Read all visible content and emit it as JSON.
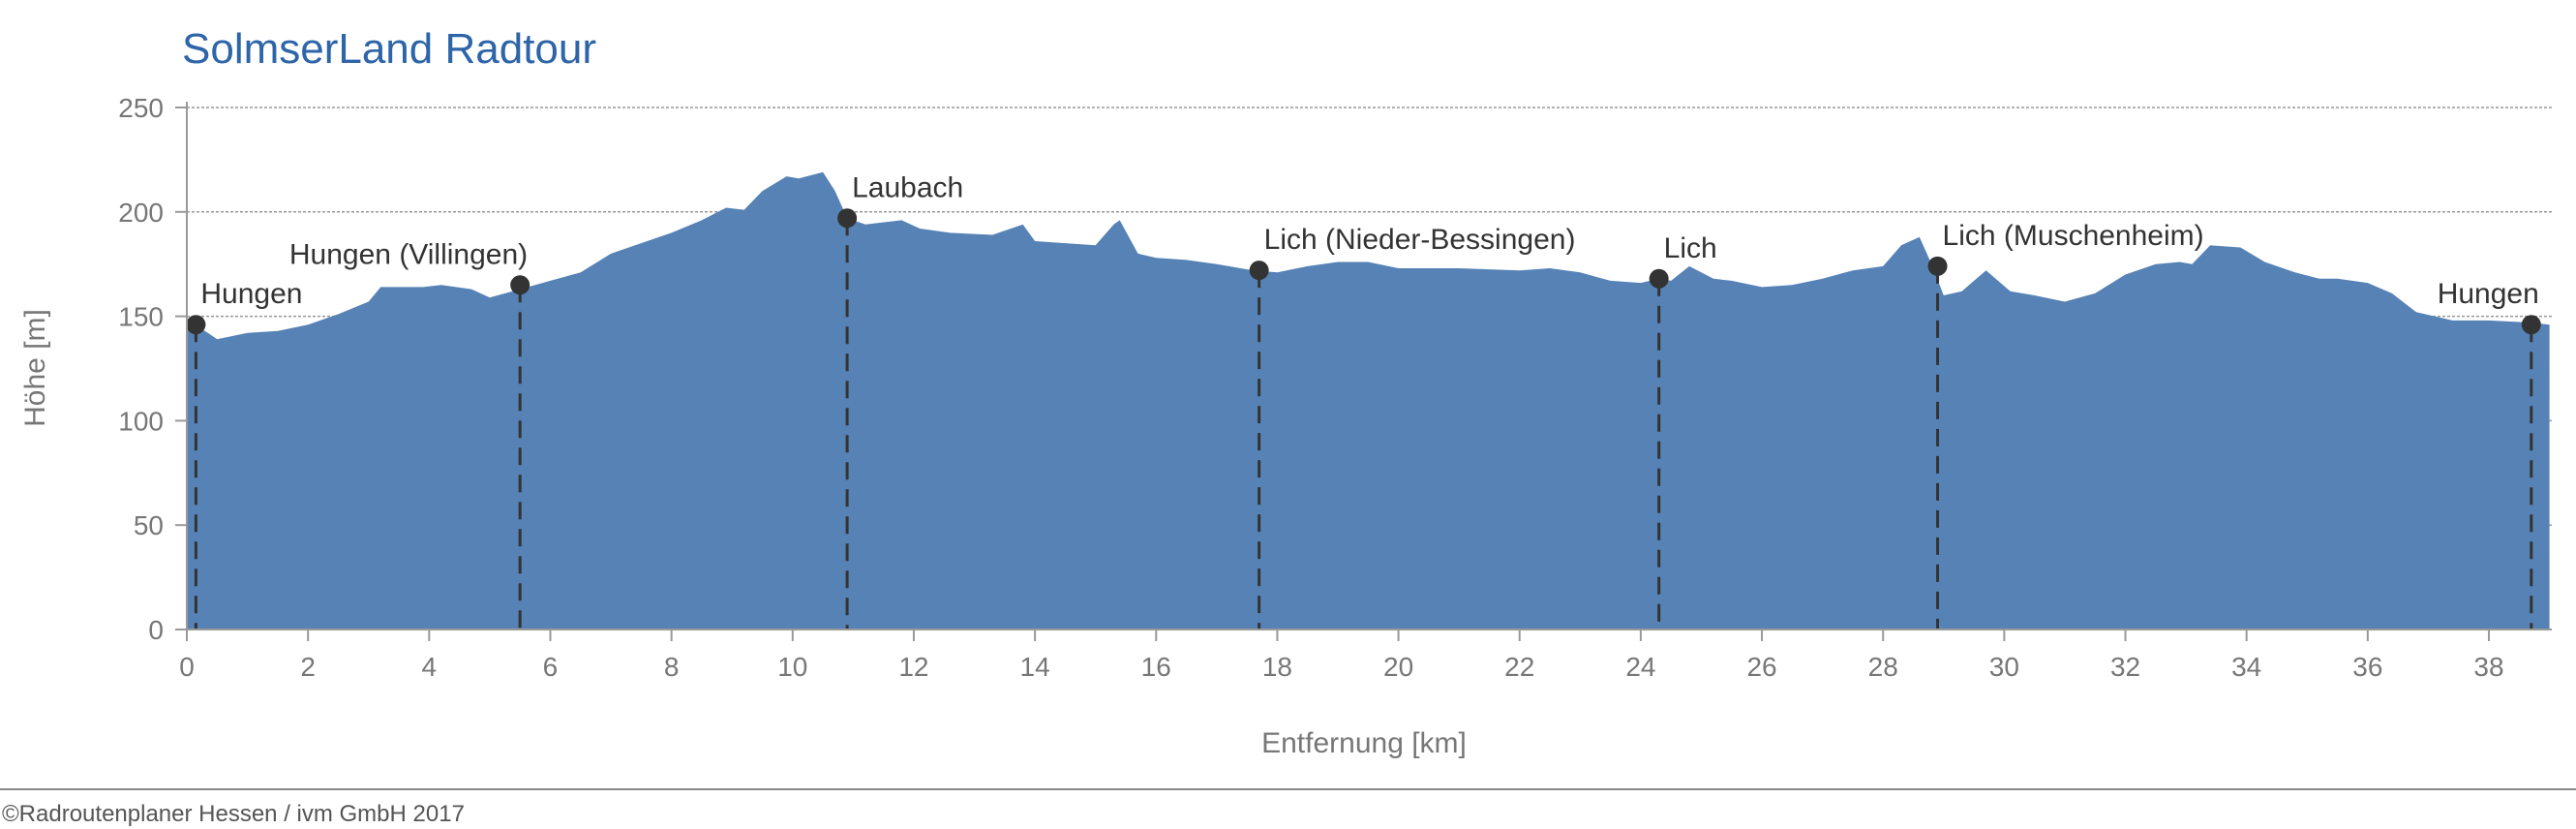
{
  "chart_data": {
    "type": "area",
    "title": "SolmserLand Radtour",
    "xlabel": "Entfernung [km]",
    "ylabel": "Höhe [m]",
    "xlim": [
      0,
      39
    ],
    "ylim": [
      0,
      250
    ],
    "xticks": [
      0,
      2,
      4,
      6,
      8,
      10,
      12,
      14,
      16,
      18,
      20,
      22,
      24,
      26,
      28,
      30,
      32,
      34,
      36,
      38
    ],
    "yticks": [
      0,
      50,
      100,
      150,
      200,
      250
    ],
    "grid": true,
    "fill_color": "#5682b6",
    "profile": [
      [
        0,
        146
      ],
      [
        0.3,
        143
      ],
      [
        0.5,
        139
      ],
      [
        1,
        142
      ],
      [
        1.5,
        143
      ],
      [
        2,
        146
      ],
      [
        2.5,
        151
      ],
      [
        3,
        157
      ],
      [
        3.2,
        164
      ],
      [
        3.9,
        164
      ],
      [
        4.2,
        165
      ],
      [
        4.7,
        163
      ],
      [
        5,
        159
      ],
      [
        5.5,
        163
      ],
      [
        6,
        167
      ],
      [
        6.5,
        171
      ],
      [
        7,
        180
      ],
      [
        7.5,
        185
      ],
      [
        8,
        190
      ],
      [
        8.5,
        196
      ],
      [
        8.9,
        202
      ],
      [
        9.2,
        201
      ],
      [
        9.5,
        210
      ],
      [
        9.9,
        217
      ],
      [
        10.1,
        216
      ],
      [
        10.5,
        219
      ],
      [
        10.7,
        210
      ],
      [
        10.9,
        197
      ],
      [
        11.2,
        194
      ],
      [
        11.8,
        196
      ],
      [
        12.1,
        192
      ],
      [
        12.6,
        190
      ],
      [
        13.3,
        189
      ],
      [
        13.8,
        194
      ],
      [
        14,
        186
      ],
      [
        14.5,
        185
      ],
      [
        15,
        184
      ],
      [
        15.3,
        194
      ],
      [
        15.4,
        196
      ],
      [
        15.7,
        180
      ],
      [
        16,
        178
      ],
      [
        16.5,
        177
      ],
      [
        17,
        175
      ],
      [
        17.6,
        172
      ],
      [
        18,
        171
      ],
      [
        18.5,
        174
      ],
      [
        19,
        176
      ],
      [
        19.5,
        176
      ],
      [
        20,
        173
      ],
      [
        21,
        173
      ],
      [
        22,
        172
      ],
      [
        22.5,
        173
      ],
      [
        23,
        171
      ],
      [
        23.5,
        167
      ],
      [
        24,
        166
      ],
      [
        24.3,
        168
      ],
      [
        24.5,
        167
      ],
      [
        24.8,
        174
      ],
      [
        25.2,
        168
      ],
      [
        25.5,
        167
      ],
      [
        26,
        164
      ],
      [
        26.5,
        165
      ],
      [
        27,
        168
      ],
      [
        27.5,
        172
      ],
      [
        28,
        174
      ],
      [
        28.3,
        184
      ],
      [
        28.6,
        188
      ],
      [
        28.8,
        175
      ],
      [
        29,
        160
      ],
      [
        29.3,
        162
      ],
      [
        29.7,
        172
      ],
      [
        30.1,
        162
      ],
      [
        30.5,
        160
      ],
      [
        31,
        157
      ],
      [
        31.5,
        161
      ],
      [
        32,
        170
      ],
      [
        32.5,
        175
      ],
      [
        32.9,
        176
      ],
      [
        33.1,
        175
      ],
      [
        33.4,
        184
      ],
      [
        33.9,
        183
      ],
      [
        34.3,
        176
      ],
      [
        34.8,
        171
      ],
      [
        35.2,
        168
      ],
      [
        35.5,
        168
      ],
      [
        36,
        166
      ],
      [
        36.4,
        161
      ],
      [
        36.8,
        152
      ],
      [
        37.4,
        148
      ],
      [
        38,
        148
      ],
      [
        38.7,
        147
      ],
      [
        39,
        146
      ]
    ],
    "markers": [
      {
        "label": "Hungen",
        "km": 0.15,
        "m": 146,
        "align": "start"
      },
      {
        "label": "Hungen (Villingen)",
        "km": 5.5,
        "m": 165,
        "align": "end"
      },
      {
        "label": "Laubach",
        "km": 10.9,
        "m": 197,
        "align": "start"
      },
      {
        "label": "Lich (Nieder-Bessingen)",
        "km": 17.7,
        "m": 172,
        "align": "start"
      },
      {
        "label": "Lich",
        "km": 24.3,
        "m": 168,
        "align": "start"
      },
      {
        "label": "Lich (Muschenheim)",
        "km": 28.9,
        "m": 174,
        "align": "start"
      },
      {
        "label": "Hungen",
        "km": 38.7,
        "m": 146,
        "align": "end"
      }
    ]
  },
  "footer": "©Radroutenplaner Hessen / ivm GmbH 2017"
}
